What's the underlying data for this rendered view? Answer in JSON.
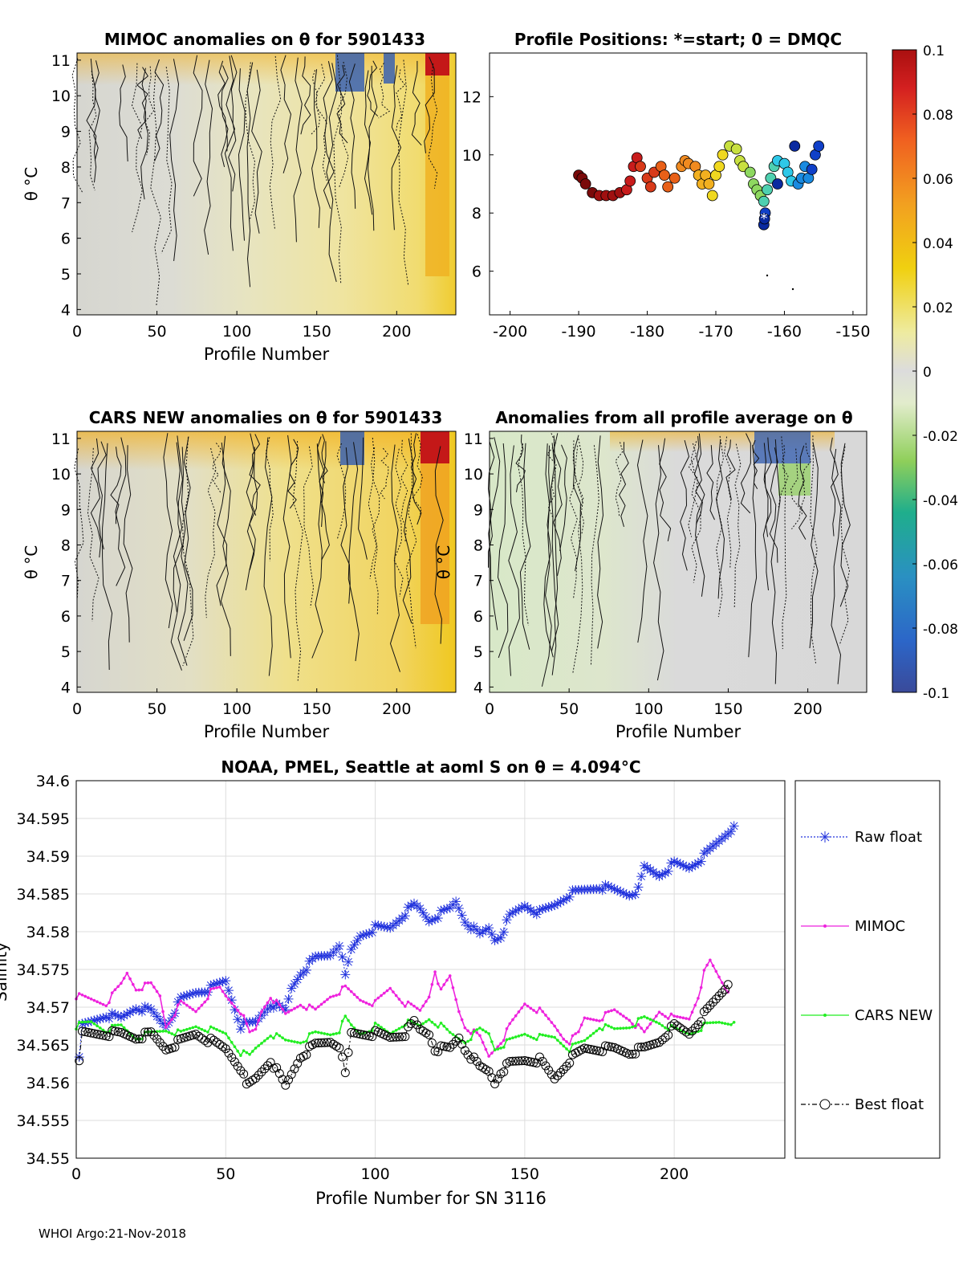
{
  "colors": {
    "raw_float": "#2233dd",
    "mimoc": "#ee22dd",
    "cars": "#22ee22",
    "best": "#000000",
    "grid": "#dddddd"
  },
  "colorbar": {
    "ticks": [
      "0.1",
      "0.08",
      "0.06",
      "0.04",
      "0.02",
      "0",
      "-0.02",
      "-0.04",
      "-0.06",
      "-0.08",
      "-0.1"
    ],
    "range": [
      -0.1,
      0.1
    ]
  },
  "panels": {
    "mimoc": {
      "title": "MIMOC anomalies on θ  for 5901433",
      "xlabel": "Profile Number",
      "ylabel": "θ °C",
      "xticks": [
        "0",
        "50",
        "100",
        "150",
        "200"
      ],
      "yticks": [
        "4",
        "5",
        "6",
        "7",
        "8",
        "9",
        "10",
        "11"
      ]
    },
    "positions": {
      "title": "Profile Positions: *=start; 0 = DMQC",
      "xticks": [
        "-200",
        "-190",
        "-180",
        "-170",
        "-160",
        "-150"
      ],
      "yticks": [
        "6",
        "8",
        "10",
        "12"
      ]
    },
    "cars": {
      "title": "CARS NEW anomalies on θ for 5901433",
      "xlabel": "Profile Number",
      "ylabel": "θ °C",
      "xticks": [
        "0",
        "50",
        "100",
        "150",
        "200"
      ],
      "yticks": [
        "4",
        "5",
        "6",
        "7",
        "8",
        "9",
        "10",
        "11"
      ]
    },
    "allavg": {
      "title": "Anomalies from all profile average on θ",
      "xlabel": "Profile Number",
      "ylabel": "θ °C",
      "xticks": [
        "0",
        "50",
        "100",
        "150",
        "200"
      ],
      "yticks": [
        "4",
        "5",
        "6",
        "7",
        "8",
        "9",
        "10",
        "11"
      ]
    }
  },
  "chart_data": {
    "type": "line",
    "title": "NOAA, PMEL, Seattle at aoml S on θ = 4.094°C",
    "xlabel": "Profile Number for SN 3116",
    "ylabel": "Salinity",
    "xlim": [
      0,
      237
    ],
    "ylim": [
      34.55,
      34.6
    ],
    "xticks": [
      "0",
      "50",
      "100",
      "150",
      "200"
    ],
    "yticks": [
      "34.55",
      "34.555",
      "34.56",
      "34.565",
      "34.57",
      "34.575",
      "34.58",
      "34.585",
      "34.59",
      "34.595",
      "34.6"
    ],
    "grid": true,
    "legend_position": "right-outside",
    "series": [
      {
        "name": "Raw float",
        "marker": "asterisk",
        "anchors": [
          [
            1,
            34.563
          ],
          [
            2,
            34.5675
          ],
          [
            10,
            34.569
          ],
          [
            15,
            34.5685
          ],
          [
            20,
            34.57
          ],
          [
            25,
            34.5695
          ],
          [
            30,
            34.5675
          ],
          [
            35,
            34.571
          ],
          [
            40,
            34.572
          ],
          [
            45,
            34.5725
          ],
          [
            50,
            34.5735
          ],
          [
            55,
            34.5675
          ],
          [
            60,
            34.568
          ],
          [
            65,
            34.5705
          ],
          [
            70,
            34.5695
          ],
          [
            72,
            34.5725
          ],
          [
            75,
            34.5745
          ],
          [
            80,
            34.5765
          ],
          [
            85,
            34.577
          ],
          [
            88,
            34.5785
          ],
          [
            90,
            34.574
          ],
          [
            92,
            34.5775
          ],
          [
            95,
            34.5795
          ],
          [
            100,
            34.5805
          ],
          [
            105,
            34.5805
          ],
          [
            110,
            34.5825
          ],
          [
            113,
            34.5835
          ],
          [
            115,
            34.583
          ],
          [
            118,
            34.5815
          ],
          [
            120,
            34.582
          ],
          [
            125,
            34.583
          ],
          [
            127,
            34.584
          ],
          [
            130,
            34.5815
          ],
          [
            135,
            34.5795
          ],
          [
            138,
            34.5805
          ],
          [
            140,
            34.579
          ],
          [
            142,
            34.5795
          ],
          [
            145,
            34.582
          ],
          [
            150,
            34.5835
          ],
          [
            155,
            34.5825
          ],
          [
            160,
            34.5835
          ],
          [
            165,
            34.585
          ],
          [
            170,
            34.5855
          ],
          [
            175,
            34.586
          ],
          [
            180,
            34.5855
          ],
          [
            185,
            34.585
          ],
          [
            188,
            34.5855
          ],
          [
            190,
            34.5885
          ],
          [
            195,
            34.5875
          ],
          [
            200,
            34.589
          ],
          [
            205,
            34.5885
          ],
          [
            210,
            34.59
          ],
          [
            215,
            34.592
          ],
          [
            220,
            34.594
          ]
        ]
      },
      {
        "name": "MIMOC",
        "marker": "dot",
        "anchors": [
          [
            0,
            34.5715
          ],
          [
            5,
            34.571
          ],
          [
            10,
            34.5705
          ],
          [
            15,
            34.573
          ],
          [
            17,
            34.5745
          ],
          [
            20,
            34.5725
          ],
          [
            25,
            34.573
          ],
          [
            28,
            34.5715
          ],
          [
            30,
            34.5675
          ],
          [
            35,
            34.5705
          ],
          [
            40,
            34.5695
          ],
          [
            45,
            34.572
          ],
          [
            48,
            34.5725
          ],
          [
            50,
            34.5715
          ],
          [
            55,
            34.5695
          ],
          [
            58,
            34.5665
          ],
          [
            60,
            34.567
          ],
          [
            62,
            34.5695
          ],
          [
            65,
            34.5715
          ],
          [
            70,
            34.569
          ],
          [
            75,
            34.5705
          ],
          [
            80,
            34.5695
          ],
          [
            85,
            34.5715
          ],
          [
            90,
            34.5725
          ],
          [
            95,
            34.571
          ],
          [
            100,
            34.5705
          ],
          [
            105,
            34.5725
          ],
          [
            110,
            34.5705
          ],
          [
            115,
            34.5695
          ],
          [
            118,
            34.5715
          ],
          [
            120,
            34.575
          ],
          [
            122,
            34.572
          ],
          [
            125,
            34.574
          ],
          [
            128,
            34.5695
          ],
          [
            130,
            34.5675
          ],
          [
            135,
            34.566
          ],
          [
            138,
            34.5635
          ],
          [
            140,
            34.5645
          ],
          [
            143,
            34.566
          ],
          [
            145,
            34.5675
          ],
          [
            150,
            34.5705
          ],
          [
            155,
            34.5695
          ],
          [
            160,
            34.5675
          ],
          [
            163,
            34.566
          ],
          [
            165,
            34.5655
          ],
          [
            168,
            34.5665
          ],
          [
            170,
            34.5685
          ],
          [
            175,
            34.5685
          ],
          [
            180,
            34.5695
          ],
          [
            185,
            34.5685
          ],
          [
            190,
            34.5665
          ],
          [
            195,
            34.5695
          ],
          [
            200,
            34.5685
          ],
          [
            205,
            34.5685
          ],
          [
            208,
            34.5715
          ],
          [
            210,
            34.5745
          ],
          [
            212,
            34.576
          ],
          [
            215,
            34.574
          ],
          [
            218,
            34.572
          ]
        ]
      },
      {
        "name": "CARS NEW",
        "marker": "dot",
        "anchors": [
          [
            0,
            34.5675
          ],
          [
            5,
            34.568
          ],
          [
            10,
            34.567
          ],
          [
            15,
            34.5675
          ],
          [
            20,
            34.566
          ],
          [
            25,
            34.5665
          ],
          [
            30,
            34.567
          ],
          [
            35,
            34.5665
          ],
          [
            40,
            34.5675
          ],
          [
            45,
            34.567
          ],
          [
            50,
            34.5665
          ],
          [
            55,
            34.564
          ],
          [
            58,
            34.5635
          ],
          [
            60,
            34.5645
          ],
          [
            65,
            34.5665
          ],
          [
            70,
            34.5655
          ],
          [
            75,
            34.5655
          ],
          [
            80,
            34.5665
          ],
          [
            85,
            34.5665
          ],
          [
            88,
            34.567
          ],
          [
            90,
            34.5685
          ],
          [
            92,
            34.5675
          ],
          [
            95,
            34.5665
          ],
          [
            100,
            34.5675
          ],
          [
            105,
            34.5665
          ],
          [
            110,
            34.568
          ],
          [
            115,
            34.5675
          ],
          [
            118,
            34.5685
          ],
          [
            122,
            34.5675
          ],
          [
            125,
            34.5665
          ],
          [
            130,
            34.5655
          ],
          [
            135,
            34.567
          ],
          [
            138,
            34.5665
          ],
          [
            140,
            34.5645
          ],
          [
            145,
            34.5655
          ],
          [
            150,
            34.5665
          ],
          [
            155,
            34.566
          ],
          [
            160,
            34.566
          ],
          [
            165,
            34.5645
          ],
          [
            170,
            34.5655
          ],
          [
            175,
            34.5675
          ],
          [
            180,
            34.567
          ],
          [
            185,
            34.5675
          ],
          [
            190,
            34.5685
          ],
          [
            195,
            34.568
          ],
          [
            200,
            34.567
          ],
          [
            205,
            34.5665
          ],
          [
            210,
            34.5675
          ],
          [
            215,
            34.568
          ],
          [
            220,
            34.568
          ]
        ]
      },
      {
        "name": "Best float",
        "marker": "circle",
        "anchors": [
          [
            1,
            34.5625
          ],
          [
            2,
            34.5665
          ],
          [
            10,
            34.5665
          ],
          [
            15,
            34.5665
          ],
          [
            20,
            34.566
          ],
          [
            25,
            34.5665
          ],
          [
            30,
            34.5645
          ],
          [
            35,
            34.5655
          ],
          [
            40,
            34.5665
          ],
          [
            45,
            34.5655
          ],
          [
            50,
            34.5645
          ],
          [
            55,
            34.562
          ],
          [
            57,
            34.5595
          ],
          [
            60,
            34.5605
          ],
          [
            65,
            34.563
          ],
          [
            70,
            34.5595
          ],
          [
            75,
            34.5635
          ],
          [
            80,
            34.565
          ],
          [
            85,
            34.5655
          ],
          [
            88,
            34.565
          ],
          [
            90,
            34.561
          ],
          [
            92,
            34.5665
          ],
          [
            95,
            34.5665
          ],
          [
            100,
            34.5665
          ],
          [
            105,
            34.566
          ],
          [
            110,
            34.5665
          ],
          [
            113,
            34.568
          ],
          [
            115,
            34.567
          ],
          [
            118,
            34.5665
          ],
          [
            120,
            34.5645
          ],
          [
            125,
            34.5645
          ],
          [
            128,
            34.566
          ],
          [
            130,
            34.5645
          ],
          [
            135,
            34.562
          ],
          [
            138,
            34.5615
          ],
          [
            140,
            34.56
          ],
          [
            142,
            34.5615
          ],
          [
            145,
            34.5625
          ],
          [
            150,
            34.563
          ],
          [
            155,
            34.563
          ],
          [
            160,
            34.5605
          ],
          [
            165,
            34.563
          ],
          [
            170,
            34.5645
          ],
          [
            175,
            34.5645
          ],
          [
            180,
            34.5645
          ],
          [
            185,
            34.564
          ],
          [
            190,
            34.5645
          ],
          [
            195,
            34.5655
          ],
          [
            200,
            34.5675
          ],
          [
            205,
            34.5665
          ],
          [
            210,
            34.569
          ],
          [
            215,
            34.5715
          ],
          [
            218,
            34.573
          ]
        ]
      }
    ]
  },
  "footer": "WHOI Argo:21-Nov-2018"
}
